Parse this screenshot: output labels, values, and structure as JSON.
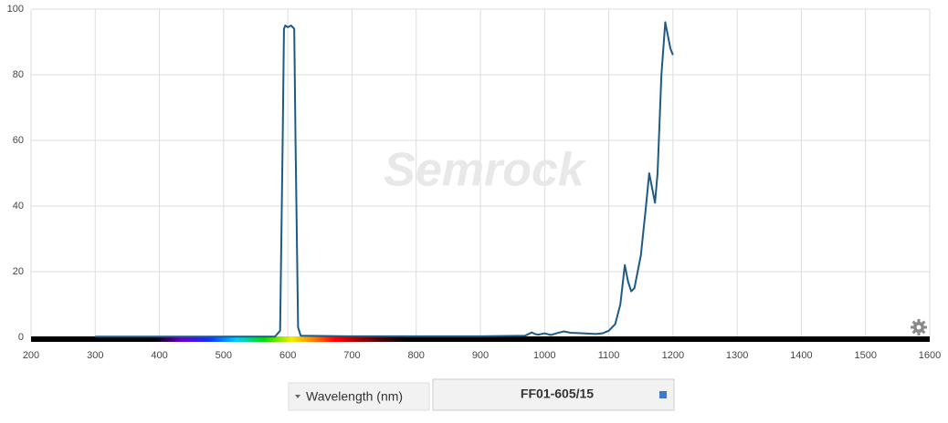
{
  "chart_data": {
    "type": "line",
    "x": [
      300,
      580,
      588,
      592,
      594,
      596,
      600,
      605,
      610,
      612,
      616,
      620,
      700,
      800,
      900,
      970,
      980,
      985,
      990,
      1000,
      1010,
      1020,
      1030,
      1040,
      1060,
      1080,
      1090,
      1100,
      1110,
      1118,
      1125,
      1130,
      1135,
      1140,
      1150,
      1158,
      1163,
      1168,
      1172,
      1176,
      1182,
      1188,
      1192,
      1196,
      1200
    ],
    "values": [
      0.2,
      0.2,
      2,
      60,
      94,
      95,
      94.5,
      95,
      94,
      60,
      3,
      0.5,
      0.3,
      0.3,
      0.3,
      0.5,
      1.5,
      1.0,
      0.8,
      1.2,
      0.7,
      1.3,
      1.8,
      1.4,
      1.2,
      1.0,
      1.2,
      2,
      4,
      10,
      22,
      17,
      14,
      15,
      25,
      40,
      50,
      45,
      41,
      50,
      80,
      96,
      92,
      88,
      86
    ],
    "color": "#1f5a85",
    "xlim": [
      200,
      1600
    ],
    "xticks": [
      200,
      300,
      400,
      500,
      600,
      700,
      800,
      900,
      1000,
      1100,
      1200,
      1300,
      1400,
      1500,
      1600
    ],
    "ylim": [
      0,
      100
    ],
    "yticks": [
      0,
      20,
      40,
      60,
      80,
      100
    ],
    "grid": true,
    "watermark": "Semrock"
  },
  "controls": {
    "axis_menu": "Wavelength (nm)",
    "filter_name": "FF01-605/15"
  }
}
